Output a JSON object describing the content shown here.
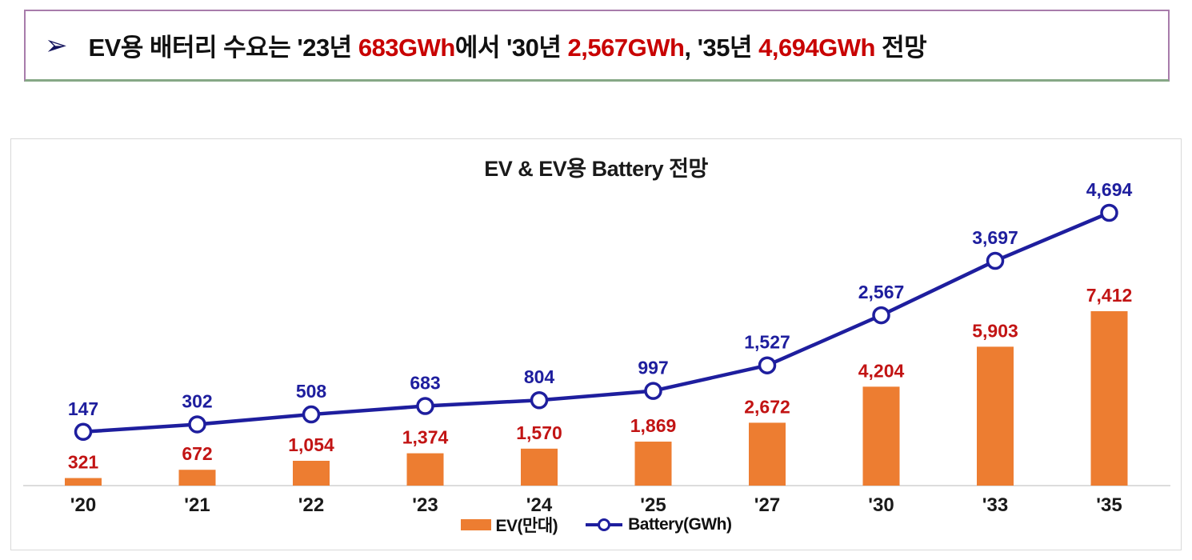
{
  "headline": {
    "bullet": "➢",
    "text_color": "#111111",
    "highlight_color": "#c80000",
    "segments": [
      {
        "text": "EV용 배터리 수요는 '23년 ",
        "highlight": false
      },
      {
        "text": "683GWh",
        "highlight": true
      },
      {
        "text": "에서 '30년 ",
        "highlight": false
      },
      {
        "text": "2,567GWh",
        "highlight": true
      },
      {
        "text": ", '35년 ",
        "highlight": false
      },
      {
        "text": "4,694GWh",
        "highlight": true
      },
      {
        "text": " 전망",
        "highlight": false
      }
    ]
  },
  "chart_data": {
    "type": "bar+line",
    "title": "EV & EV용 Battery 전망",
    "categories": [
      "'20",
      "'21",
      "'22",
      "'23",
      "'24",
      "'25",
      "'27",
      "'30",
      "'33",
      "'35"
    ],
    "series": [
      {
        "name": "EV(만대)",
        "type": "bar",
        "color": "#ed7d31",
        "label_color": "#c21414",
        "values": [
          321,
          672,
          1054,
          1374,
          1570,
          1869,
          2672,
          4204,
          5903,
          7412
        ]
      },
      {
        "name": "Battery(GWh)",
        "type": "line",
        "color": "#1e1e9e",
        "label_color": "#1e1e9e",
        "marker": "hollow-circle",
        "values": [
          147,
          302,
          508,
          683,
          804,
          997,
          1527,
          2567,
          3697,
          4694
        ]
      }
    ],
    "xlabel": "",
    "ylabel": "",
    "axis_line_color": "#d0d0d0",
    "x_tick_color": "#1a1a1a",
    "grid": false,
    "data_labels": true,
    "legend_position": "bottom"
  }
}
